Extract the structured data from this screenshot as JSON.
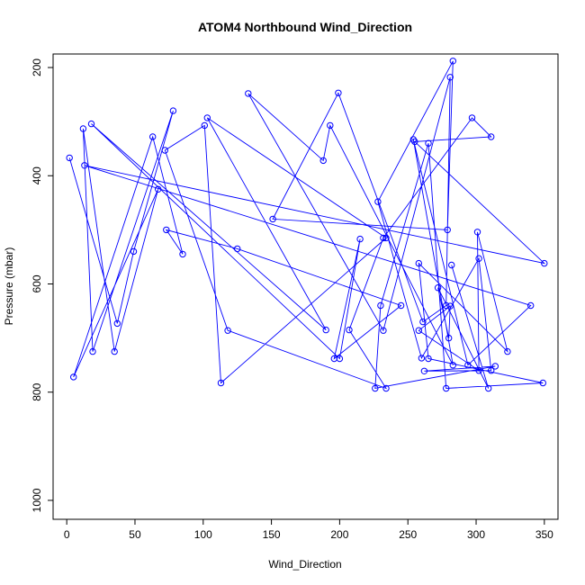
{
  "chart_data": {
    "type": "line",
    "title": "ATOM4 Northbound Wind_Direction",
    "xlabel": "Wind_Direction",
    "ylabel": "Pressure (mbar)",
    "xlim": [
      -10,
      360
    ],
    "ylim": [
      1035,
      175
    ],
    "y_reversed": true,
    "grid": false,
    "legend": "none",
    "x_ticks": [
      0,
      50,
      100,
      150,
      200,
      250,
      300,
      350
    ],
    "y_ticks": [
      200,
      400,
      600,
      800,
      1000
    ],
    "color": "#0000ff",
    "series": [
      {
        "marker": "circle",
        "points": [
          [
            2,
            367
          ],
          [
            37,
            673
          ],
          [
            49,
            540
          ],
          [
            78,
            280
          ],
          [
            19,
            725
          ],
          [
            12,
            313
          ],
          [
            35,
            725
          ],
          [
            67,
            425
          ],
          [
            5,
            772
          ],
          [
            63,
            328
          ],
          [
            85,
            545
          ],
          [
            73,
            500
          ],
          [
            125,
            535
          ],
          [
            245,
            640
          ],
          [
            196,
            738
          ],
          [
            215,
            517
          ],
          [
            200,
            738
          ],
          [
            18,
            304
          ],
          [
            190,
            685
          ],
          [
            103,
            293
          ],
          [
            234,
            515
          ],
          [
            113,
            783
          ],
          [
            101,
            307
          ],
          [
            72,
            353
          ],
          [
            118,
            686
          ],
          [
            234,
            793
          ],
          [
            207,
            685
          ],
          [
            232,
            515
          ],
          [
            297,
            293
          ],
          [
            311,
            328
          ],
          [
            255,
            337
          ],
          [
            350,
            562
          ],
          [
            13,
            381
          ],
          [
            340,
            640
          ],
          [
            294,
            750
          ],
          [
            254,
            333
          ],
          [
            283,
            750
          ],
          [
            193,
            307
          ],
          [
            188,
            372
          ],
          [
            133,
            248
          ],
          [
            232,
            686
          ],
          [
            281,
            218
          ],
          [
            278,
            640
          ],
          [
            261,
            670
          ],
          [
            199,
            247
          ],
          [
            151,
            480
          ],
          [
            279,
            500
          ],
          [
            283,
            188
          ],
          [
            228,
            448
          ],
          [
            260,
            737
          ],
          [
            302,
            553
          ],
          [
            311,
            760
          ],
          [
            262,
            761
          ],
          [
            314,
            752
          ],
          [
            226,
            793
          ],
          [
            230,
            640
          ],
          [
            265,
            340
          ],
          [
            278,
            793
          ],
          [
            349,
            783
          ],
          [
            265,
            738
          ],
          [
            258,
            562
          ],
          [
            323,
            725
          ],
          [
            301,
            504
          ],
          [
            302,
            760
          ],
          [
            258,
            686
          ],
          [
            281,
            641
          ],
          [
            280,
            700
          ],
          [
            272,
            607
          ],
          [
            309,
            793
          ],
          [
            282,
            565
          ]
        ]
      }
    ]
  }
}
